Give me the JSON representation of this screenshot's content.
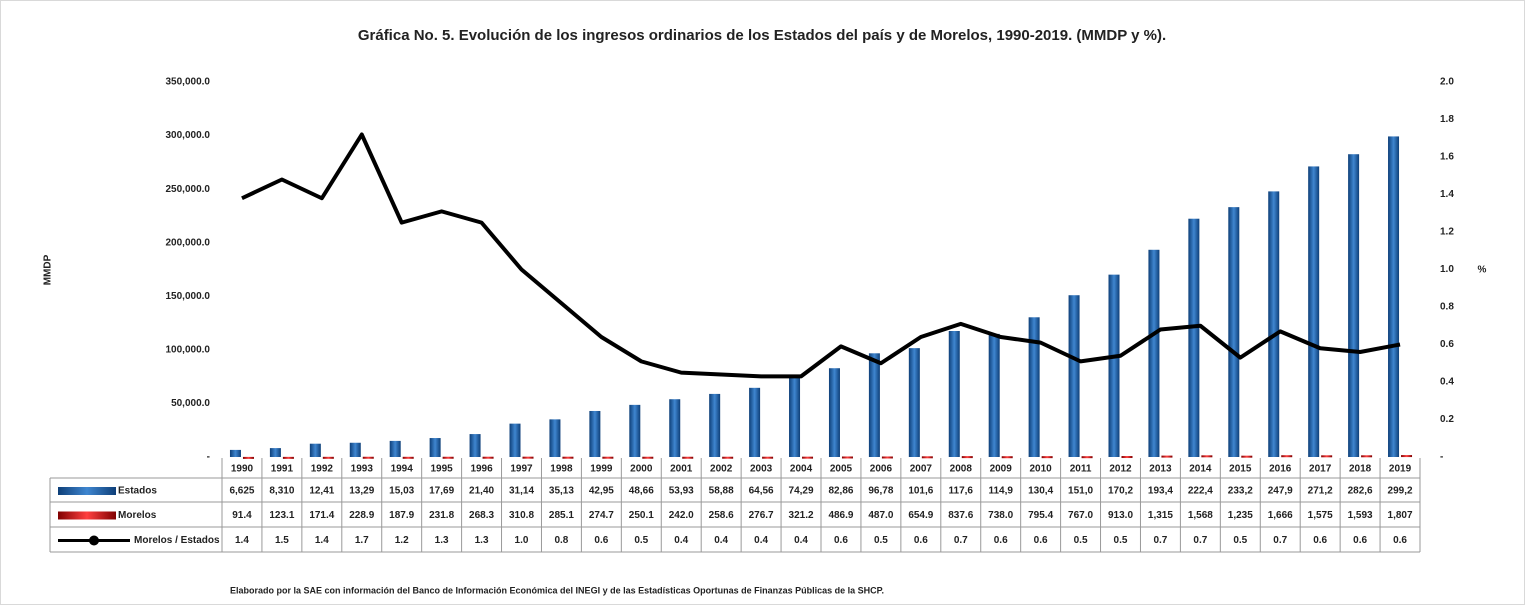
{
  "chart_data": {
    "type": "bar_line_table",
    "title": "Gráfica No. 5. Evolución de los ingresos ordinarios de los Estados del país y de Morelos, 1990-2019. (MMDP y %).",
    "ylabel": "MMDP",
    "y2label": "%",
    "footnote": "Elaborado por la SAE con información del Banco de Información Económica del INEGI y de las Estadísticas Oportunas de Finanzas Públicas de la SHCP.",
    "categories": [
      "1990",
      "1991",
      "1992",
      "1993",
      "1994",
      "1995",
      "1996",
      "1997",
      "1998",
      "1999",
      "2000",
      "2001",
      "2002",
      "2003",
      "2004",
      "2005",
      "2006",
      "2007",
      "2008",
      "2009",
      "2010",
      "2011",
      "2012",
      "2013",
      "2014",
      "2015",
      "2016",
      "2017",
      "2018",
      "2019"
    ],
    "ylim": [
      0,
      350000
    ],
    "yticks": [
      {
        "value": 0,
        "label": "-"
      },
      {
        "value": 50000,
        "label": "50,000.0"
      },
      {
        "value": 100000,
        "label": "100,000.0"
      },
      {
        "value": 150000,
        "label": "150,000.0"
      },
      {
        "value": 200000,
        "label": "200,000.0"
      },
      {
        "value": 250000,
        "label": "250,000.0"
      },
      {
        "value": 300000,
        "label": "300,000.0"
      },
      {
        "value": 350000,
        "label": "350,000.0"
      }
    ],
    "y2lim": [
      0,
      2.0
    ],
    "y2ticks": [
      {
        "value": 0,
        "label": "-"
      },
      0.2,
      0.4,
      0.6,
      0.8,
      {
        "value": 1.0,
        "label": "1.0"
      },
      1.2,
      1.4,
      1.6,
      1.8,
      {
        "value": 2.0,
        "label": "2.0"
      }
    ],
    "series": [
      {
        "name": "Estados",
        "type": "bar",
        "color": "#1f5fa8",
        "values": [
          6625,
          8310,
          12410,
          13290,
          15030,
          17690,
          21400,
          31140,
          35130,
          42950,
          48660,
          53930,
          58880,
          64560,
          74290,
          82860,
          96780,
          101600,
          117600,
          114900,
          130400,
          151000,
          170200,
          193400,
          222400,
          233200,
          247900,
          271200,
          282600,
          299200
        ],
        "value_labels": [
          "6,625",
          "8,310",
          "12,41",
          "13,29",
          "15,03",
          "17,69",
          "21,40",
          "31,14",
          "35,13",
          "42,95",
          "48,66",
          "53,93",
          "58,88",
          "64,56",
          "74,29",
          "82,86",
          "96,78",
          "101,6",
          "117,6",
          "114,9",
          "130,4",
          "151,0",
          "170,2",
          "193,4",
          "222,4",
          "233,2",
          "247,9",
          "271,2",
          "282,6",
          "299,2"
        ]
      },
      {
        "name": "Morelos",
        "type": "bar",
        "color": "#c00000",
        "values": [
          91.4,
          123.1,
          171.4,
          228.9,
          187.9,
          231.8,
          268.3,
          310.8,
          285.1,
          274.7,
          250.1,
          242.0,
          258.6,
          276.7,
          321.2,
          486.9,
          487.0,
          654.9,
          837.6,
          738.0,
          795.4,
          767.0,
          913.0,
          1315,
          1568,
          1235,
          1666,
          1575,
          1593,
          1807
        ],
        "value_labels": [
          "91.4",
          "123.1",
          "171.4",
          "228.9",
          "187.9",
          "231.8",
          "268.3",
          "310.8",
          "285.1",
          "274.7",
          "250.1",
          "242.0",
          "258.6",
          "276.7",
          "321.2",
          "486.9",
          "487.0",
          "654.9",
          "837.6",
          "738.0",
          "795.4",
          "767.0",
          "913.0",
          "1,315",
          "1,568",
          "1,235",
          "1,666",
          "1,575",
          "1,593",
          "1,807"
        ]
      },
      {
        "name": "Morelos / Estados",
        "type": "line",
        "axis": "y2",
        "color": "#000000",
        "values": [
          1.38,
          1.48,
          1.38,
          1.72,
          1.25,
          1.31,
          1.25,
          1.0,
          0.82,
          0.64,
          0.51,
          0.45,
          0.44,
          0.43,
          0.43,
          0.59,
          0.5,
          0.64,
          0.71,
          0.64,
          0.61,
          0.51,
          0.54,
          0.68,
          0.7,
          0.53,
          0.67,
          0.58,
          0.56,
          0.6
        ],
        "value_labels": [
          "1.4",
          "1.5",
          "1.4",
          "1.7",
          "1.2",
          "1.3",
          "1.3",
          "1.0",
          "0.8",
          "0.6",
          "0.5",
          "0.4",
          "0.4",
          "0.4",
          "0.4",
          "0.6",
          "0.5",
          "0.6",
          "0.7",
          "0.6",
          "0.6",
          "0.5",
          "0.5",
          "0.7",
          "0.7",
          "0.5",
          "0.7",
          "0.6",
          "0.6",
          "0.6"
        ]
      }
    ]
  }
}
